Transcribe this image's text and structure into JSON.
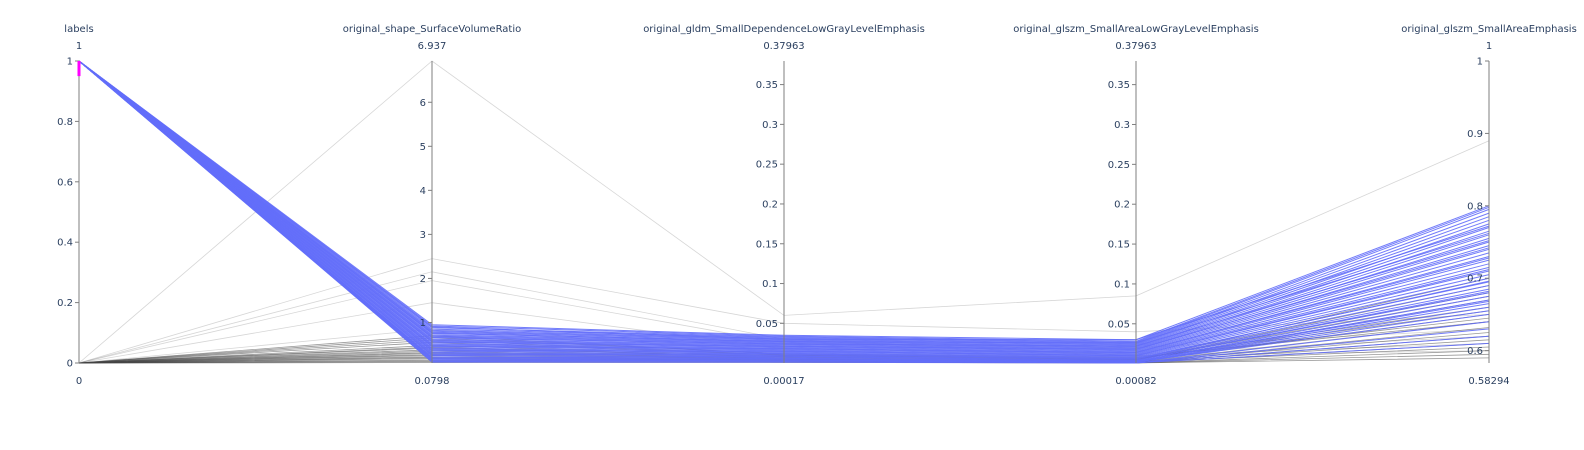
{
  "chart_data": {
    "type": "parallel_coordinates",
    "highlight_color": "#636efa",
    "muted_color": "#444444",
    "brush_color": "#ff00ff",
    "dimensions": [
      {
        "label": "labels",
        "min_label": "0",
        "max_label": "1",
        "range": [
          0,
          1
        ],
        "ticks": [
          0,
          0.2,
          0.4,
          0.6,
          0.8,
          1
        ],
        "tick_labels": [
          "0",
          "0.2",
          "0.4",
          "0.6",
          "0.8",
          "1"
        ],
        "constraint_range": [
          0.95,
          1
        ]
      },
      {
        "label": "original_shape_SurfaceVolumeRatio",
        "min_label": "0.0798",
        "max_label": "6.937",
        "range": [
          0.0798,
          6.937
        ],
        "ticks": [
          1,
          2,
          3,
          4,
          5,
          6
        ],
        "tick_labels": [
          "1",
          "2",
          "3",
          "4",
          "5",
          "6"
        ]
      },
      {
        "label": "original_gldm_SmallDependenceLowGrayLevelEmphasis",
        "min_label": "0.00017",
        "max_label": "0.37963",
        "range": [
          0.00017,
          0.37963
        ],
        "ticks": [
          0.05,
          0.1,
          0.15,
          0.2,
          0.25,
          0.3,
          0.35
        ],
        "tick_labels": [
          "0.05",
          "0.1",
          "0.15",
          "0.2",
          "0.25",
          "0.3",
          "0.35"
        ]
      },
      {
        "label": "original_glszm_SmallAreaLowGrayLevelEmphasis",
        "min_label": "0.00082",
        "max_label": "0.37963",
        "range": [
          0.00082,
          0.37963
        ],
        "ticks": [
          0.05,
          0.1,
          0.15,
          0.2,
          0.25,
          0.3,
          0.35
        ],
        "tick_labels": [
          "0.05",
          "0.1",
          "0.15",
          "0.2",
          "0.25",
          "0.3",
          "0.35"
        ]
      },
      {
        "label": "original_glszm_SmallAreaEmphasis",
        "min_label": "0.58294",
        "max_label": "1",
        "range": [
          0.58294,
          1
        ],
        "ticks": [
          0.6,
          0.7,
          0.8,
          0.9,
          1
        ],
        "tick_labels": [
          "0.6",
          "0.7",
          "0.8",
          "0.9",
          "1"
        ]
      }
    ],
    "highlighted_lines": [
      [
        1,
        0.95,
        0.035,
        0.03,
        0.8
      ],
      [
        1,
        0.92,
        0.034,
        0.028,
        0.798
      ],
      [
        1,
        0.88,
        0.033,
        0.027,
        0.795
      ],
      [
        1,
        0.85,
        0.032,
        0.026,
        0.79
      ],
      [
        1,
        0.82,
        0.031,
        0.025,
        0.785
      ],
      [
        1,
        0.8,
        0.03,
        0.024,
        0.78
      ],
      [
        1,
        0.78,
        0.029,
        0.023,
        0.775
      ],
      [
        1,
        0.75,
        0.028,
        0.022,
        0.77
      ],
      [
        1,
        0.72,
        0.027,
        0.021,
        0.765
      ],
      [
        1,
        0.7,
        0.026,
        0.02,
        0.76
      ],
      [
        1,
        0.68,
        0.025,
        0.019,
        0.755
      ],
      [
        1,
        0.65,
        0.024,
        0.018,
        0.75
      ],
      [
        1,
        0.62,
        0.023,
        0.017,
        0.745
      ],
      [
        1,
        0.6,
        0.022,
        0.016,
        0.74
      ],
      [
        1,
        0.58,
        0.021,
        0.015,
        0.735
      ],
      [
        1,
        0.55,
        0.02,
        0.014,
        0.73
      ],
      [
        1,
        0.52,
        0.019,
        0.013,
        0.725
      ],
      [
        1,
        0.5,
        0.018,
        0.012,
        0.72
      ],
      [
        1,
        0.48,
        0.017,
        0.011,
        0.715
      ],
      [
        1,
        0.45,
        0.016,
        0.01,
        0.71
      ],
      [
        1,
        0.42,
        0.015,
        0.009,
        0.705
      ],
      [
        1,
        0.4,
        0.014,
        0.008,
        0.7
      ],
      [
        1,
        0.38,
        0.013,
        0.007,
        0.695
      ],
      [
        1,
        0.35,
        0.012,
        0.006,
        0.69
      ],
      [
        1,
        0.32,
        0.011,
        0.005,
        0.685
      ],
      [
        1,
        0.3,
        0.01,
        0.004,
        0.68
      ],
      [
        1,
        0.28,
        0.009,
        0.003,
        0.675
      ],
      [
        1,
        0.25,
        0.008,
        0.003,
        0.67
      ],
      [
        1,
        0.22,
        0.007,
        0.002,
        0.665
      ],
      [
        1,
        0.2,
        0.006,
        0.002,
        0.66
      ],
      [
        1,
        0.18,
        0.005,
        0.002,
        0.65
      ],
      [
        1,
        0.16,
        0.004,
        0.001,
        0.64
      ],
      [
        1,
        0.14,
        0.003,
        0.001,
        0.63
      ],
      [
        1,
        0.12,
        0.002,
        0.001,
        0.62
      ],
      [
        1,
        0.1,
        0.001,
        0.001,
        0.61
      ],
      [
        1,
        0.9,
        0.03,
        0.03,
        0.772
      ],
      [
        1,
        0.76,
        0.027,
        0.026,
        0.762
      ],
      [
        1,
        0.66,
        0.024,
        0.022,
        0.752
      ],
      [
        1,
        0.56,
        0.021,
        0.018,
        0.742
      ],
      [
        1,
        0.46,
        0.018,
        0.014,
        0.728
      ],
      [
        1,
        0.36,
        0.015,
        0.01,
        0.712
      ],
      [
        1,
        0.26,
        0.012,
        0.006,
        0.696
      ],
      [
        1,
        0.19,
        0.009,
        0.004,
        0.682
      ],
      [
        1,
        0.15,
        0.006,
        0.003,
        0.668
      ],
      [
        1,
        0.11,
        0.004,
        0.002,
        0.655
      ]
    ],
    "context_lines": [
      [
        0,
        6.937,
        0.06,
        0.085,
        0.89
      ],
      [
        0,
        2.45,
        0.05,
        0.04,
        0.65
      ],
      [
        0,
        2.15,
        0.03,
        0.01,
        0.61
      ],
      [
        0,
        1.95,
        0.025,
        0.02,
        0.63
      ],
      [
        0,
        1.45,
        0.018,
        0.012,
        0.62
      ],
      [
        0,
        0.85,
        0.015,
        0.01,
        0.6
      ],
      [
        0,
        0.65,
        0.012,
        0.008,
        0.64
      ],
      [
        0,
        0.55,
        0.01,
        0.006,
        0.66
      ],
      [
        0,
        0.48,
        0.009,
        0.005,
        0.68
      ],
      [
        0,
        0.42,
        0.008,
        0.004,
        0.7
      ],
      [
        0,
        0.38,
        0.007,
        0.004,
        0.69
      ],
      [
        0,
        0.35,
        0.006,
        0.003,
        0.67
      ],
      [
        0,
        0.32,
        0.006,
        0.003,
        0.65
      ],
      [
        0,
        0.3,
        0.005,
        0.002,
        0.64
      ],
      [
        0,
        0.27,
        0.005,
        0.002,
        0.625
      ],
      [
        0,
        0.25,
        0.004,
        0.002,
        0.615
      ],
      [
        0,
        0.22,
        0.004,
        0.002,
        0.605
      ],
      [
        0,
        0.2,
        0.003,
        0.001,
        0.595
      ],
      [
        0,
        0.18,
        0.003,
        0.001,
        0.59
      ],
      [
        0,
        0.15,
        0.002,
        0.001,
        0.6
      ],
      [
        0,
        0.13,
        0.002,
        0.001,
        0.61
      ],
      [
        0,
        0.11,
        0.001,
        0.001,
        0.62
      ],
      [
        0,
        0.09,
        0.001,
        0.001,
        0.632
      ],
      [
        0,
        0.7,
        0.011,
        0.007,
        0.645
      ],
      [
        0,
        0.6,
        0.01,
        0.006,
        0.655
      ],
      [
        0,
        0.44,
        0.008,
        0.005,
        0.675
      ]
    ]
  }
}
